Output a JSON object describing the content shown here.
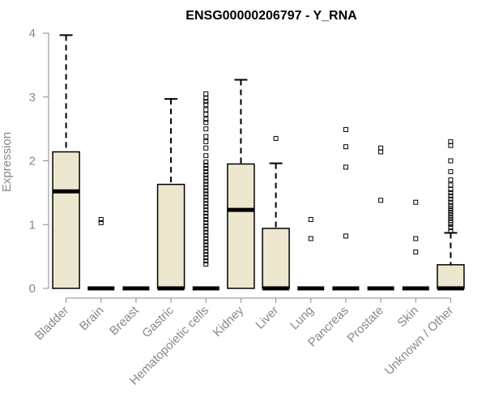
{
  "chart_data": {
    "type": "boxplot",
    "title": "ENSG00000206797 - Y_RNA",
    "ylabel": "Expression",
    "xlabel": "",
    "ylim": [
      0,
      4
    ],
    "yticks": [
      "0",
      "1",
      "2",
      "3",
      "4"
    ],
    "box_fill": "#EDE7CF",
    "categories": [
      "Bladder",
      "Brain",
      "Breast",
      "Gastric",
      "Hematopoietic cells",
      "Kidney",
      "Liver",
      "Lung",
      "Pancreas",
      "Prostate",
      "Skin",
      "Unknown / Other"
    ],
    "boxes": [
      {
        "min": 0,
        "q1": 0,
        "median": 1.52,
        "q3": 2.14,
        "max": 3.97,
        "outliers": []
      },
      {
        "min": 0,
        "q1": 0,
        "median": 0,
        "q3": 0,
        "max": 0,
        "outliers": [
          1.03,
          1.08
        ]
      },
      {
        "min": 0,
        "q1": 0,
        "median": 0,
        "q3": 0,
        "max": 0,
        "outliers": []
      },
      {
        "min": 0,
        "q1": 0,
        "median": 0,
        "q3": 1.63,
        "max": 2.97,
        "outliers": []
      },
      {
        "min": 0,
        "q1": 0,
        "median": 0,
        "q3": 0,
        "max": 0,
        "outliers": [
          0.38,
          0.43,
          0.48,
          0.53,
          0.58,
          0.63,
          0.68,
          0.73,
          0.78,
          0.83,
          0.88,
          0.93,
          0.98,
          1.03,
          1.08,
          1.13,
          1.18,
          1.23,
          1.28,
          1.33,
          1.38,
          1.43,
          1.48,
          1.53,
          1.58,
          1.63,
          1.68,
          1.73,
          1.78,
          1.83,
          1.88,
          1.93,
          1.98,
          2.08,
          2.2,
          2.3,
          2.38,
          2.5,
          2.6,
          2.65,
          2.73,
          2.8,
          2.88,
          2.93,
          2.98,
          3.05
        ]
      },
      {
        "min": 0,
        "q1": 0,
        "median": 1.23,
        "q3": 1.95,
        "max": 3.27,
        "outliers": []
      },
      {
        "min": 0,
        "q1": 0,
        "median": 0,
        "q3": 0.94,
        "max": 1.96,
        "outliers": [
          2.35
        ]
      },
      {
        "min": 0,
        "q1": 0,
        "median": 0,
        "q3": 0,
        "max": 0,
        "outliers": [
          0.78,
          1.08
        ]
      },
      {
        "min": 0,
        "q1": 0,
        "median": 0,
        "q3": 0,
        "max": 0,
        "outliers": [
          0.82,
          1.9,
          2.22,
          2.49
        ]
      },
      {
        "min": 0,
        "q1": 0,
        "median": 0,
        "q3": 0,
        "max": 0,
        "outliers": [
          1.38,
          2.14,
          2.2
        ]
      },
      {
        "min": 0,
        "q1": 0,
        "median": 0,
        "q3": 0,
        "max": 0,
        "outliers": [
          0.57,
          0.78,
          1.35
        ]
      },
      {
        "min": 0,
        "q1": 0,
        "median": 0,
        "q3": 0.37,
        "max": 0.87,
        "outliers": [
          0.9,
          0.95,
          1.0,
          1.03,
          1.06,
          1.1,
          1.14,
          1.18,
          1.22,
          1.26,
          1.3,
          1.35,
          1.4,
          1.45,
          1.5,
          1.55,
          1.62,
          1.7,
          1.83,
          2.0,
          2.24,
          2.3
        ]
      }
    ]
  }
}
